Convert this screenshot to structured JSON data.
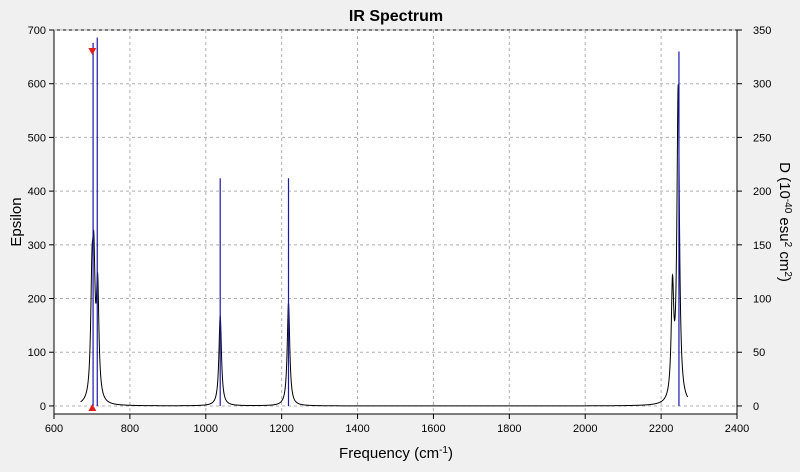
{
  "chart_data": {
    "type": "line",
    "title": "IR Spectrum",
    "xlabel": "Frequency (cm",
    "xlabel_sup": "-1",
    "xlabel_tail": ")",
    "ylabel_left": "Epsilon",
    "ylabel_right": "D (10",
    "ylabel_right_sup1": "-40",
    "ylabel_right_mid": " esu",
    "ylabel_right_sup2": "2",
    "ylabel_right_mid2": " cm",
    "ylabel_right_sup3": "2",
    "ylabel_right_tail": ")",
    "xlim": [
      600,
      2400
    ],
    "ylim_left": [
      -15,
      700
    ],
    "ylim_right": [
      -7.5,
      350
    ],
    "x_ticks": [
      600,
      800,
      1000,
      1200,
      1400,
      1600,
      1800,
      2000,
      2200,
      2400
    ],
    "y_ticks_left": [
      0,
      100,
      200,
      300,
      400,
      500,
      600,
      700
    ],
    "y_ticks_right": [
      0,
      50,
      100,
      150,
      200,
      250,
      300,
      350
    ],
    "grid": true,
    "colors": {
      "spectrum": "#000000",
      "sticks": "#1a1aa8",
      "marker": "#e02020",
      "plot_bg": "#ffffff",
      "frame_bg": "#f0f0f0",
      "grid": "#b0b0b0"
    },
    "spectrum": {
      "name": "Epsilon",
      "peaks": [
        {
          "x": 700,
          "height": 190
        },
        {
          "x": 705,
          "height": 220
        },
        {
          "x": 715,
          "height": 205
        },
        {
          "x": 1038,
          "height": 168
        },
        {
          "x": 1218,
          "height": 192
        },
        {
          "x": 2230,
          "height": 205
        },
        {
          "x": 2245,
          "height": 585
        }
      ],
      "hwhm": 4
    },
    "sticks": {
      "name": "D",
      "values": [
        {
          "x": 703,
          "d": 338
        },
        {
          "x": 714,
          "d": 343
        },
        {
          "x": 1038,
          "d": 212
        },
        {
          "x": 1218,
          "d": 212
        },
        {
          "x": 2247,
          "d": 330
        }
      ]
    },
    "marker_x": 701
  }
}
